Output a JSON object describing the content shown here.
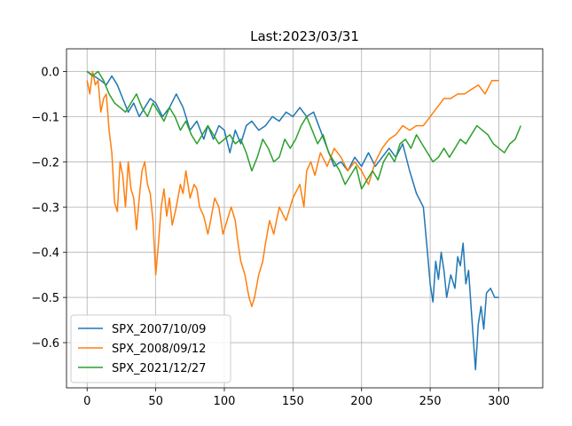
{
  "chart_data": {
    "type": "line",
    "title": "Last:2023/03/31",
    "xlabel": "",
    "ylabel": "",
    "xlim": [
      -15,
      332
    ],
    "ylim": [
      -0.7,
      0.05
    ],
    "xticks": [
      0,
      50,
      100,
      150,
      200,
      250,
      300
    ],
    "yticks": [
      0.0,
      -0.1,
      -0.2,
      -0.3,
      -0.4,
      -0.5,
      -0.6
    ],
    "grid": true,
    "legend_position": "lower-left",
    "series": [
      {
        "name": "SPX_2007/10/09",
        "color": "#1f77b4",
        "points": [
          [
            0,
            0
          ],
          [
            5,
            -0.01
          ],
          [
            10,
            -0.02
          ],
          [
            14,
            -0.03
          ],
          [
            18,
            -0.01
          ],
          [
            22,
            -0.03
          ],
          [
            26,
            -0.06
          ],
          [
            30,
            -0.09
          ],
          [
            34,
            -0.07
          ],
          [
            38,
            -0.1
          ],
          [
            42,
            -0.08
          ],
          [
            46,
            -0.06
          ],
          [
            50,
            -0.07
          ],
          [
            55,
            -0.1
          ],
          [
            60,
            -0.08
          ],
          [
            65,
            -0.05
          ],
          [
            70,
            -0.08
          ],
          [
            75,
            -0.13
          ],
          [
            80,
            -0.11
          ],
          [
            85,
            -0.15
          ],
          [
            88,
            -0.12
          ],
          [
            92,
            -0.15
          ],
          [
            96,
            -0.12
          ],
          [
            100,
            -0.13
          ],
          [
            104,
            -0.18
          ],
          [
            108,
            -0.13
          ],
          [
            112,
            -0.16
          ],
          [
            116,
            -0.12
          ],
          [
            120,
            -0.11
          ],
          [
            125,
            -0.13
          ],
          [
            130,
            -0.12
          ],
          [
            135,
            -0.1
          ],
          [
            140,
            -0.11
          ],
          [
            145,
            -0.09
          ],
          [
            150,
            -0.1
          ],
          [
            155,
            -0.08
          ],
          [
            160,
            -0.1
          ],
          [
            165,
            -0.09
          ],
          [
            170,
            -0.13
          ],
          [
            175,
            -0.17
          ],
          [
            180,
            -0.21
          ],
          [
            185,
            -0.2
          ],
          [
            190,
            -0.22
          ],
          [
            195,
            -0.19
          ],
          [
            200,
            -0.21
          ],
          [
            205,
            -0.18
          ],
          [
            210,
            -0.21
          ],
          [
            215,
            -0.19
          ],
          [
            220,
            -0.17
          ],
          [
            225,
            -0.19
          ],
          [
            230,
            -0.16
          ],
          [
            235,
            -0.22
          ],
          [
            240,
            -0.27
          ],
          [
            245,
            -0.3
          ],
          [
            248,
            -0.4
          ],
          [
            250,
            -0.47
          ],
          [
            252,
            -0.51
          ],
          [
            254,
            -0.42
          ],
          [
            256,
            -0.46
          ],
          [
            258,
            -0.4
          ],
          [
            260,
            -0.44
          ],
          [
            262,
            -0.5
          ],
          [
            265,
            -0.45
          ],
          [
            268,
            -0.48
          ],
          [
            270,
            -0.41
          ],
          [
            272,
            -0.43
          ],
          [
            274,
            -0.38
          ],
          [
            276,
            -0.47
          ],
          [
            278,
            -0.44
          ],
          [
            280,
            -0.53
          ],
          [
            283,
            -0.66
          ],
          [
            285,
            -0.56
          ],
          [
            287,
            -0.52
          ],
          [
            289,
            -0.57
          ],
          [
            291,
            -0.49
          ],
          [
            294,
            -0.48
          ],
          [
            297,
            -0.5
          ],
          [
            300,
            -0.5
          ]
        ]
      },
      {
        "name": "SPX_2008/09/12",
        "color": "#ff7f0e",
        "points": [
          [
            0,
            -0.02
          ],
          [
            2,
            -0.05
          ],
          [
            4,
            0.0
          ],
          [
            6,
            -0.03
          ],
          [
            8,
            -0.02
          ],
          [
            10,
            -0.09
          ],
          [
            12,
            -0.06
          ],
          [
            14,
            -0.05
          ],
          [
            16,
            -0.13
          ],
          [
            18,
            -0.18
          ],
          [
            20,
            -0.29
          ],
          [
            22,
            -0.31
          ],
          [
            24,
            -0.2
          ],
          [
            26,
            -0.23
          ],
          [
            28,
            -0.3
          ],
          [
            30,
            -0.2
          ],
          [
            32,
            -0.26
          ],
          [
            34,
            -0.28
          ],
          [
            36,
            -0.35
          ],
          [
            38,
            -0.28
          ],
          [
            40,
            -0.22
          ],
          [
            42,
            -0.2
          ],
          [
            44,
            -0.25
          ],
          [
            46,
            -0.27
          ],
          [
            48,
            -0.33
          ],
          [
            50,
            -0.45
          ],
          [
            52,
            -0.38
          ],
          [
            54,
            -0.3
          ],
          [
            56,
            -0.26
          ],
          [
            58,
            -0.32
          ],
          [
            60,
            -0.28
          ],
          [
            62,
            -0.34
          ],
          [
            65,
            -0.3
          ],
          [
            68,
            -0.25
          ],
          [
            70,
            -0.27
          ],
          [
            72,
            -0.22
          ],
          [
            75,
            -0.28
          ],
          [
            78,
            -0.25
          ],
          [
            80,
            -0.26
          ],
          [
            82,
            -0.3
          ],
          [
            85,
            -0.32
          ],
          [
            88,
            -0.36
          ],
          [
            90,
            -0.33
          ],
          [
            93,
            -0.28
          ],
          [
            96,
            -0.3
          ],
          [
            99,
            -0.36
          ],
          [
            102,
            -0.33
          ],
          [
            105,
            -0.3
          ],
          [
            108,
            -0.33
          ],
          [
            110,
            -0.38
          ],
          [
            112,
            -0.42
          ],
          [
            115,
            -0.45
          ],
          [
            118,
            -0.5
          ],
          [
            120,
            -0.52
          ],
          [
            122,
            -0.5
          ],
          [
            125,
            -0.45
          ],
          [
            128,
            -0.42
          ],
          [
            130,
            -0.38
          ],
          [
            133,
            -0.33
          ],
          [
            136,
            -0.36
          ],
          [
            140,
            -0.3
          ],
          [
            145,
            -0.33
          ],
          [
            150,
            -0.28
          ],
          [
            155,
            -0.25
          ],
          [
            158,
            -0.3
          ],
          [
            160,
            -0.22
          ],
          [
            163,
            -0.2
          ],
          [
            166,
            -0.23
          ],
          [
            170,
            -0.18
          ],
          [
            175,
            -0.21
          ],
          [
            180,
            -0.17
          ],
          [
            185,
            -0.19
          ],
          [
            190,
            -0.22
          ],
          [
            195,
            -0.2
          ],
          [
            200,
            -0.22
          ],
          [
            205,
            -0.25
          ],
          [
            210,
            -0.2
          ],
          [
            215,
            -0.17
          ],
          [
            220,
            -0.15
          ],
          [
            225,
            -0.14
          ],
          [
            230,
            -0.12
          ],
          [
            235,
            -0.13
          ],
          [
            240,
            -0.12
          ],
          [
            245,
            -0.12
          ],
          [
            250,
            -0.1
          ],
          [
            255,
            -0.08
          ],
          [
            260,
            -0.06
          ],
          [
            265,
            -0.06
          ],
          [
            270,
            -0.05
          ],
          [
            275,
            -0.05
          ],
          [
            280,
            -0.04
          ],
          [
            285,
            -0.03
          ],
          [
            290,
            -0.05
          ],
          [
            295,
            -0.02
          ],
          [
            300,
            -0.02
          ]
        ]
      },
      {
        "name": "SPX_2021/12/27",
        "color": "#2ca02c",
        "points": [
          [
            0,
            0
          ],
          [
            4,
            -0.01
          ],
          [
            8,
            0.0
          ],
          [
            12,
            -0.02
          ],
          [
            16,
            -0.05
          ],
          [
            20,
            -0.07
          ],
          [
            24,
            -0.08
          ],
          [
            28,
            -0.09
          ],
          [
            32,
            -0.07
          ],
          [
            36,
            -0.05
          ],
          [
            40,
            -0.08
          ],
          [
            44,
            -0.1
          ],
          [
            48,
            -0.07
          ],
          [
            52,
            -0.09
          ],
          [
            56,
            -0.11
          ],
          [
            60,
            -0.08
          ],
          [
            64,
            -0.1
          ],
          [
            68,
            -0.13
          ],
          [
            72,
            -0.11
          ],
          [
            76,
            -0.14
          ],
          [
            80,
            -0.16
          ],
          [
            84,
            -0.14
          ],
          [
            88,
            -0.12
          ],
          [
            92,
            -0.14
          ],
          [
            96,
            -0.16
          ],
          [
            100,
            -0.15
          ],
          [
            104,
            -0.14
          ],
          [
            108,
            -0.16
          ],
          [
            112,
            -0.15
          ],
          [
            116,
            -0.18
          ],
          [
            120,
            -0.22
          ],
          [
            124,
            -0.19
          ],
          [
            128,
            -0.15
          ],
          [
            132,
            -0.17
          ],
          [
            136,
            -0.2
          ],
          [
            140,
            -0.19
          ],
          [
            144,
            -0.15
          ],
          [
            148,
            -0.17
          ],
          [
            152,
            -0.15
          ],
          [
            156,
            -0.12
          ],
          [
            160,
            -0.1
          ],
          [
            164,
            -0.13
          ],
          [
            168,
            -0.16
          ],
          [
            172,
            -0.14
          ],
          [
            176,
            -0.18
          ],
          [
            180,
            -0.2
          ],
          [
            184,
            -0.22
          ],
          [
            188,
            -0.25
          ],
          [
            192,
            -0.23
          ],
          [
            196,
            -0.21
          ],
          [
            200,
            -0.26
          ],
          [
            204,
            -0.24
          ],
          [
            208,
            -0.22
          ],
          [
            212,
            -0.24
          ],
          [
            216,
            -0.2
          ],
          [
            220,
            -0.18
          ],
          [
            224,
            -0.2
          ],
          [
            228,
            -0.16
          ],
          [
            232,
            -0.15
          ],
          [
            236,
            -0.17
          ],
          [
            240,
            -0.14
          ],
          [
            244,
            -0.16
          ],
          [
            248,
            -0.18
          ],
          [
            252,
            -0.2
          ],
          [
            256,
            -0.19
          ],
          [
            260,
            -0.17
          ],
          [
            264,
            -0.19
          ],
          [
            268,
            -0.17
          ],
          [
            272,
            -0.15
          ],
          [
            276,
            -0.16
          ],
          [
            280,
            -0.14
          ],
          [
            284,
            -0.12
          ],
          [
            288,
            -0.13
          ],
          [
            292,
            -0.14
          ],
          [
            296,
            -0.16
          ],
          [
            300,
            -0.17
          ],
          [
            304,
            -0.18
          ],
          [
            308,
            -0.16
          ],
          [
            312,
            -0.15
          ],
          [
            316,
            -0.12
          ]
        ]
      }
    ]
  }
}
